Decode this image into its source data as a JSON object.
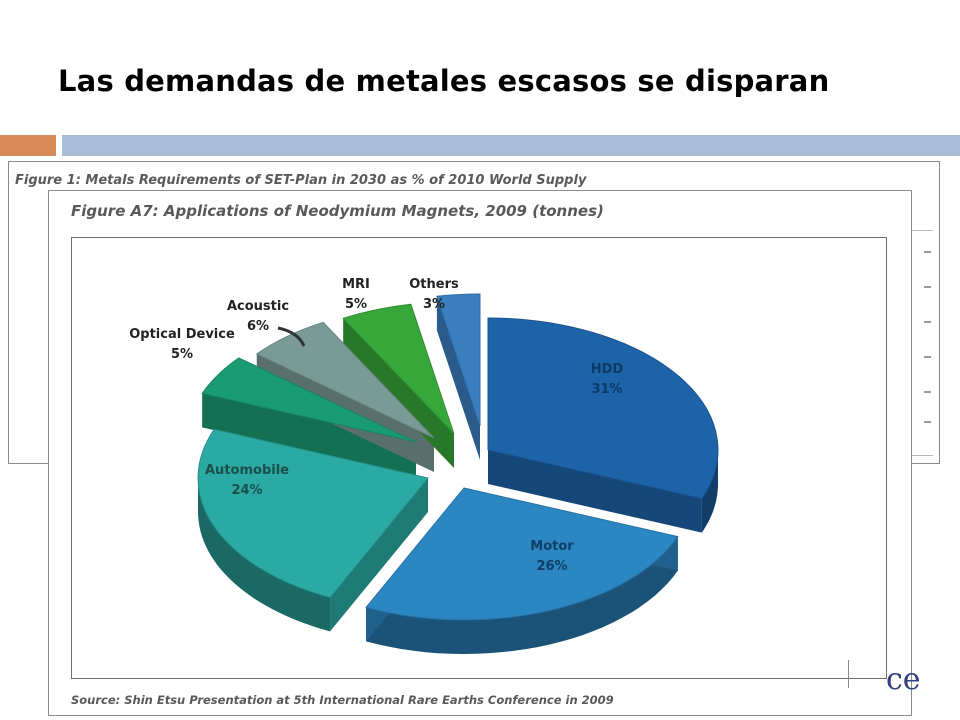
{
  "slide": {
    "title": "Las demandas de metales escasos se disparan",
    "logo_text": "ce"
  },
  "back_figure": {
    "title": "Figure 1: Metals Requirements of SET-Plan in 2030 as % of 2010 World Supply"
  },
  "front_figure": {
    "title": "Figure A7: Applications of Neodymium Magnets, 2009 (tonnes)",
    "source": "Source: Shin Etsu Presentation at 5th International Rare Earths Conference in 2009"
  },
  "chart_data": {
    "type": "pie",
    "title": "Figure A7: Applications of Neodymium Magnets, 2009 (tonnes)",
    "categories": [
      "HDD",
      "Motor",
      "Automobile",
      "Optical Device",
      "Acoustic",
      "MRI",
      "Others"
    ],
    "values": [
      31,
      26,
      24,
      5,
      6,
      5,
      3
    ],
    "labels": [
      "31%",
      "26%",
      "24%",
      "5%",
      "6%",
      "5%",
      "3%"
    ],
    "colors": [
      "#1d63a8",
      "#2b86c2",
      "#2aaaa3",
      "#1a9c72",
      "#7a9a95",
      "#37a63b",
      "#3a7fc0"
    ],
    "exploded": true,
    "style": "3d"
  }
}
